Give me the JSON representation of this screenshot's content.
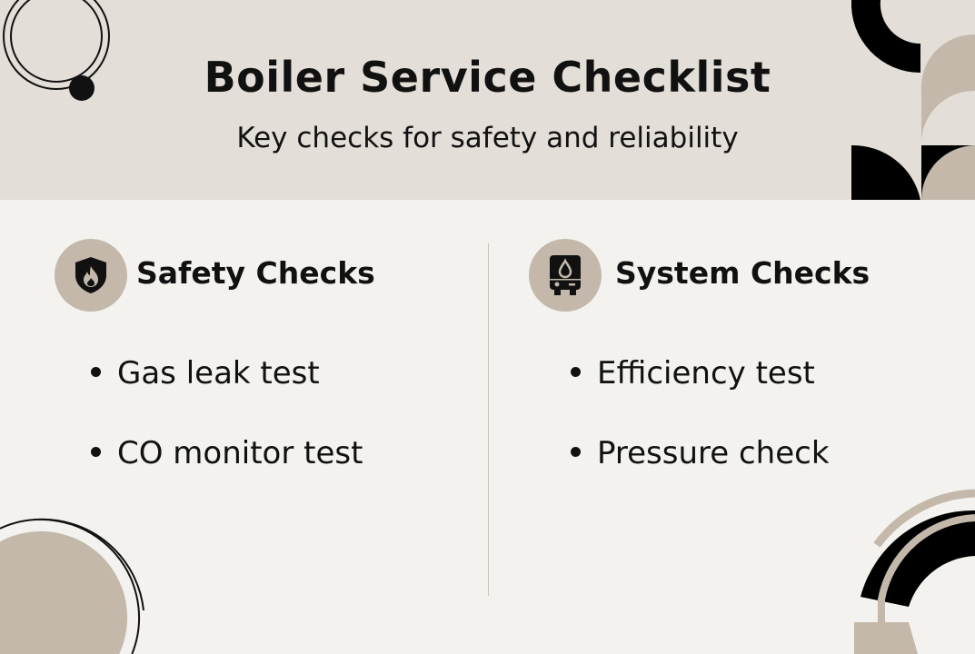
{
  "header": {
    "title": "Boiler Service Checklist",
    "subtitle": "Key checks for safety and reliability"
  },
  "columns": [
    {
      "heading": "Safety Checks",
      "icon": "shield-flame-icon",
      "items": [
        "Gas leak test",
        "CO monitor test"
      ]
    },
    {
      "heading": "System Checks",
      "icon": "boiler-icon",
      "items": [
        "Efficiency test",
        "Pressure check"
      ]
    }
  ],
  "colors": {
    "header_bg": "#e3dfd8",
    "body_bg": "#f3f2ee",
    "accent": "#c3b8aa",
    "ink": "#111111"
  }
}
